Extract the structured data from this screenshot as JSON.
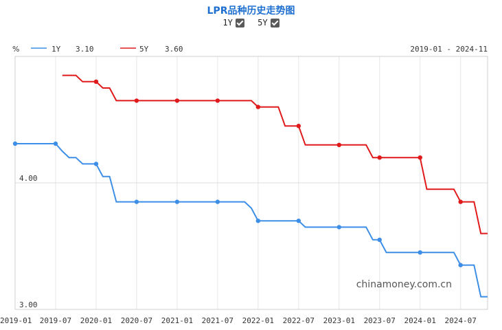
{
  "header": {
    "title": "LPR品种历史走势图",
    "toggle_1y": "1Y",
    "toggle_5y": "5Y",
    "unit": "%",
    "date_range": "2019-01 - 2024-11",
    "watermark": "chinamoney.com.cn"
  },
  "legend": [
    {
      "name": "1Y",
      "value": "3.10",
      "color": "#3d8ee6"
    },
    {
      "name": "5Y",
      "value": "3.60",
      "color": "#e0191b"
    }
  ],
  "chart_data": {
    "type": "line",
    "title": "LPR品种历史走势图",
    "ylabel": "%",
    "ylim": [
      3.0,
      5.0
    ],
    "yticks": [
      "4.00",
      "3.00"
    ],
    "xlim": [
      "2019-01",
      "2024-11"
    ],
    "xticks": [
      "2019-01",
      "2019-07",
      "2020-01",
      "2020-07",
      "2021-01",
      "2021-07",
      "2022-01",
      "2022-07",
      "2023-01",
      "2023-07",
      "2024-01",
      "2024-07"
    ],
    "series": [
      {
        "name": "1Y",
        "color": "#3d8ee6",
        "points": [
          [
            "2019-01",
            4.31
          ],
          [
            "2019-07",
            4.31
          ],
          [
            "2019-08",
            4.25
          ],
          [
            "2019-09",
            4.2
          ],
          [
            "2019-10",
            4.2
          ],
          [
            "2019-11",
            4.15
          ],
          [
            "2020-01",
            4.15
          ],
          [
            "2020-02",
            4.05
          ],
          [
            "2020-03",
            4.05
          ],
          [
            "2020-04",
            3.85
          ],
          [
            "2020-07",
            3.85
          ],
          [
            "2021-01",
            3.85
          ],
          [
            "2021-07",
            3.85
          ],
          [
            "2021-11",
            3.85
          ],
          [
            "2021-12",
            3.8
          ],
          [
            "2022-01",
            3.7
          ],
          [
            "2022-07",
            3.7
          ],
          [
            "2022-08",
            3.65
          ],
          [
            "2023-01",
            3.65
          ],
          [
            "2023-05",
            3.65
          ],
          [
            "2023-06",
            3.55
          ],
          [
            "2023-07",
            3.55
          ],
          [
            "2023-08",
            3.45
          ],
          [
            "2024-01",
            3.45
          ],
          [
            "2024-06",
            3.45
          ],
          [
            "2024-07",
            3.35
          ],
          [
            "2024-09",
            3.35
          ],
          [
            "2024-10",
            3.1
          ],
          [
            "2024-11",
            3.1
          ]
        ],
        "markers": [
          [
            "2019-01",
            4.31
          ],
          [
            "2019-07",
            4.31
          ],
          [
            "2020-01",
            4.15
          ],
          [
            "2020-07",
            3.85
          ],
          [
            "2021-01",
            3.85
          ],
          [
            "2021-07",
            3.85
          ],
          [
            "2022-01",
            3.7
          ],
          [
            "2022-07",
            3.7
          ],
          [
            "2023-01",
            3.65
          ],
          [
            "2023-07",
            3.55
          ],
          [
            "2024-01",
            3.45
          ],
          [
            "2024-07",
            3.35
          ]
        ]
      },
      {
        "name": "5Y",
        "color": "#e0191b",
        "points": [
          [
            "2019-08",
            4.85
          ],
          [
            "2019-10",
            4.85
          ],
          [
            "2019-11",
            4.8
          ],
          [
            "2020-01",
            4.8
          ],
          [
            "2020-02",
            4.75
          ],
          [
            "2020-03",
            4.75
          ],
          [
            "2020-04",
            4.65
          ],
          [
            "2020-07",
            4.65
          ],
          [
            "2021-01",
            4.65
          ],
          [
            "2021-07",
            4.65
          ],
          [
            "2021-12",
            4.65
          ],
          [
            "2022-01",
            4.6
          ],
          [
            "2022-04",
            4.6
          ],
          [
            "2022-05",
            4.45
          ],
          [
            "2022-07",
            4.45
          ],
          [
            "2022-08",
            4.3
          ],
          [
            "2023-01",
            4.3
          ],
          [
            "2023-05",
            4.3
          ],
          [
            "2023-06",
            4.2
          ],
          [
            "2023-07",
            4.2
          ],
          [
            "2024-01",
            4.2
          ],
          [
            "2024-02",
            3.95
          ],
          [
            "2024-06",
            3.95
          ],
          [
            "2024-07",
            3.85
          ],
          [
            "2024-09",
            3.85
          ],
          [
            "2024-10",
            3.6
          ],
          [
            "2024-11",
            3.6
          ]
        ],
        "markers": [
          [
            "2020-01",
            4.8
          ],
          [
            "2020-07",
            4.65
          ],
          [
            "2021-01",
            4.65
          ],
          [
            "2021-07",
            4.65
          ],
          [
            "2022-01",
            4.6
          ],
          [
            "2022-07",
            4.45
          ],
          [
            "2023-01",
            4.3
          ],
          [
            "2023-07",
            4.2
          ],
          [
            "2024-01",
            4.2
          ],
          [
            "2024-07",
            3.85
          ]
        ]
      }
    ]
  }
}
